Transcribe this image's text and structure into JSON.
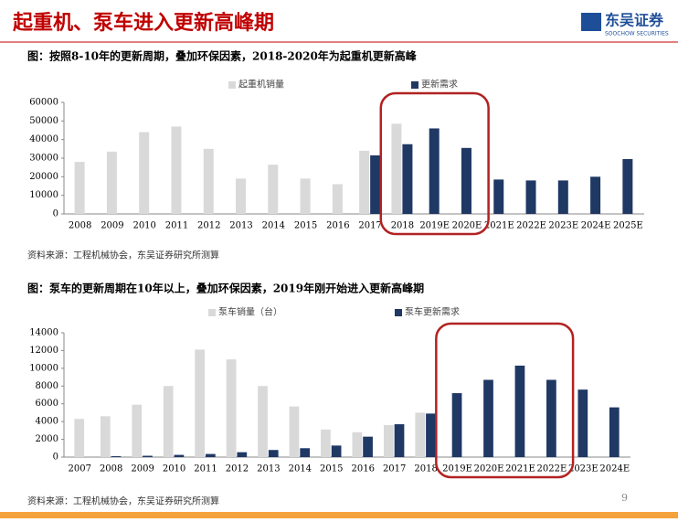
{
  "page": {
    "title": "起重机、泵车进入更新高峰期",
    "logo": "东吴证券",
    "logo_sub": "SOOCHOW SECURITIES",
    "page_number": "9"
  },
  "chart_data": [
    {
      "type": "bar",
      "title": "图：按照8-10年的更新周期，叠加环保因素，2018-2020年为起重机更新高峰",
      "categories": [
        "2008",
        "2009",
        "2010",
        "2011",
        "2012",
        "2013",
        "2014",
        "2015",
        "2016",
        "2017",
        "2018",
        "2019E",
        "2020E",
        "2021E",
        "2022E",
        "2023E",
        "2024E",
        "2025E"
      ],
      "series": [
        {
          "name": "起重机销量",
          "color": "#d9d9d9",
          "values": [
            28000,
            33500,
            44000,
            47000,
            35000,
            19000,
            26500,
            19000,
            16000,
            34000,
            48500,
            null,
            null,
            null,
            null,
            null,
            null,
            null
          ]
        },
        {
          "name": "更新需求",
          "color": "#1f3864",
          "values": [
            null,
            null,
            null,
            null,
            null,
            null,
            null,
            null,
            null,
            31500,
            37500,
            46000,
            35500,
            18500,
            18000,
            18000,
            20000,
            29500
          ]
        }
      ],
      "ylim": [
        0,
        60000
      ],
      "yticks": [
        0,
        10000,
        20000,
        30000,
        40000,
        50000,
        60000
      ],
      "source": "资料来源：工程机械协会，东吴证券研究所测算"
    },
    {
      "type": "bar",
      "title": "图：泵车的更新周期在10年以上，叠加环保因素，2019年刚开始进入更新高峰期",
      "categories": [
        "2007",
        "2008",
        "2009",
        "2010",
        "2011",
        "2012",
        "2013",
        "2014",
        "2015",
        "2016",
        "2017",
        "2018",
        "2019E",
        "2020E",
        "2021E",
        "2022E",
        "2023E",
        "2024E"
      ],
      "series": [
        {
          "name": "泵车销量（台）",
          "color": "#d9d9d9",
          "values": [
            4300,
            4600,
            5900,
            8000,
            12100,
            11000,
            8000,
            5700,
            3100,
            2800,
            3600,
            5000,
            null,
            null,
            null,
            null,
            null,
            null
          ]
        },
        {
          "name": "泵车更新需求",
          "color": "#1f3864",
          "values": [
            null,
            100,
            150,
            250,
            350,
            550,
            800,
            1000,
            1300,
            2300,
            3700,
            4900,
            7200,
            8700,
            10300,
            8700,
            7600,
            5600
          ]
        }
      ],
      "ylim": [
        0,
        14000
      ],
      "yticks": [
        0,
        2000,
        4000,
        6000,
        8000,
        10000,
        12000,
        14000
      ],
      "source": "资料来源：工程机械协会，东吴证券研究所测算"
    }
  ]
}
